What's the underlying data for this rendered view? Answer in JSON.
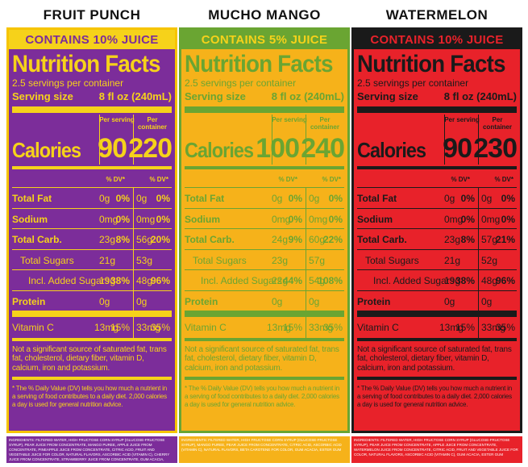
{
  "labels": [
    {
      "flavor": "FRUIT PUNCH",
      "contains": "CONTAINS 10% JUICE",
      "title": "Nutrition Facts",
      "servings": "2.5 servings per container",
      "serving_size_label": "Serving size",
      "serving_size_value": "8 fl oz (240mL)",
      "per_serving": "Per serving",
      "per_container": "Per container",
      "calories_label": "Calories",
      "calories_serving": "90",
      "calories_container": "220",
      "dv_header": "% DV*",
      "rows": [
        {
          "label": "Total Fat",
          "bold": true,
          "indent": 0,
          "a": "0g",
          "ap": "0%",
          "b": "0g",
          "bp": "0%"
        },
        {
          "label": "Sodium",
          "bold": true,
          "indent": 0,
          "a": "0mg",
          "ap": "0%",
          "b": "0mg",
          "bp": "0%"
        },
        {
          "label": "Total Carb.",
          "bold": true,
          "indent": 0,
          "a": "23g",
          "ap": "8%",
          "b": "56g",
          "bp": "20%"
        },
        {
          "label": "Total Sugars",
          "bold": false,
          "indent": 1,
          "a": "21g",
          "ap": "",
          "b": "53g",
          "bp": ""
        },
        {
          "label": "Incl. Added Sugars",
          "bold": false,
          "indent": 2,
          "a": "19g",
          "ap": "38%",
          "b": "48g",
          "bp": "96%"
        },
        {
          "label": "Protein",
          "bold": true,
          "indent": 0,
          "a": "0g",
          "ap": "",
          "b": "0g",
          "bp": ""
        }
      ],
      "vitamin": {
        "label": "Vitamin C",
        "a": "13mg",
        "ap": "15%",
        "b": "33mg",
        "bp": "35%"
      },
      "note": "Not a significant source of saturated fat, trans fat, cholesterol, dietary fiber, vitamin D, calcium, iron and potassium.",
      "footnote": "* The % Daily Value (DV) tells you how much a nutrient in a serving of food contributes to a daily diet. 2,000 calories a day is used for general nutrition advice.",
      "ingredients": "INGREDIENTS: FILTERED WATER, HIGH FRUCTOSE CORN SYRUP (GLUCOSE-FRUCTOSE SYRUP), PEAR JUICE FROM CONCENTRATE, MANGO PUREE, APPLE JUICE FROM CONCENTRATE, PINEAPPLE JUICE FROM CONCENTRATE, CITRIC ACID, FRUIT AND VEGETABLE JUICE FOR COLOR, NATURAL FLAVORS, ASCORBIC ACID (VITAMIN C), CHERRY JUICE FROM CONCENTRATE, STRAWBERRY JUICE FROM CONCENTRATE, GUM ACACIA, ESTER GUM",
      "colors": {
        "bg": "#7c2d9a",
        "fg": "#f6d21a",
        "frame": "#f6c400",
        "band": "#f6d21a",
        "bandfg": "#7c2d9a",
        "ingbg": "#7c2d9a"
      }
    },
    {
      "flavor": "MUCHO MANGO",
      "contains": "CONTAINS 5% JUICE",
      "title": "Nutrition Facts",
      "servings": "2.5 servings per container",
      "serving_size_label": "Serving size",
      "serving_size_value": "8 fl oz (240mL)",
      "per_serving": "Per serving",
      "per_container": "Per container",
      "calories_label": "Calories",
      "calories_serving": "100",
      "calories_container": "240",
      "dv_header": "% DV*",
      "rows": [
        {
          "label": "Total Fat",
          "bold": true,
          "indent": 0,
          "a": "0g",
          "ap": "0%",
          "b": "0g",
          "bp": "0%"
        },
        {
          "label": "Sodium",
          "bold": true,
          "indent": 0,
          "a": "0mg",
          "ap": "0%",
          "b": "0mg",
          "bp": "0%"
        },
        {
          "label": "Total Carb.",
          "bold": true,
          "indent": 0,
          "a": "24g",
          "ap": "9%",
          "b": "60g",
          "bp": "22%"
        },
        {
          "label": "Total Sugars",
          "bold": false,
          "indent": 1,
          "a": "23g",
          "ap": "",
          "b": "57g",
          "bp": ""
        },
        {
          "label": "Incl. Added Sugars",
          "bold": false,
          "indent": 2,
          "a": "22g",
          "ap": "44%",
          "b": "54g",
          "bp": "108%"
        },
        {
          "label": "Protein",
          "bold": true,
          "indent": 0,
          "a": "0g",
          "ap": "",
          "b": "0g",
          "bp": ""
        }
      ],
      "vitamin": {
        "label": "Vitamin C",
        "a": "13mg",
        "ap": "15%",
        "b": "33mg",
        "bp": "35%"
      },
      "note": "Not a significant source of saturated fat, trans fat, cholesterol, dietary fiber, vitamin D, calcium, iron and potassium.",
      "footnote": "* The % Daily Value (DV) tells you how much a nutrient in a serving of food contributes to a daily diet. 2,000 calories a day is used for general nutrition advice.",
      "ingredients": "INGREDIENTS: FILTERED WATER, HIGH FRUCTOSE CORN SYRUP (GLUCOSE-FRUCTOSE SYRUP), MANGO PUREE, PEAR JUICE FROM CONCENTRATE, CITRIC ACID, ASCORBIC ACID (VITAMIN C), NATURAL FLAVORS, BETA CAROTENE FOR COLOR, GUM ACACIA, ESTER GUM",
      "colors": {
        "bg": "#f6b21a",
        "fg": "#6aa532",
        "frame": "#6aa532",
        "band": "#6aa532",
        "bandfg": "#f6d21a",
        "ingbg": "#f6b21a"
      }
    },
    {
      "flavor": "WATERMELON",
      "contains": "CONTAINS 10% JUICE",
      "title": "Nutrition Facts",
      "servings": "2.5 servings per container",
      "serving_size_label": "Serving size",
      "serving_size_value": "8 fl oz (240mL)",
      "per_serving": "Per serving",
      "per_container": "Per container",
      "calories_label": "Calories",
      "calories_serving": "90",
      "calories_container": "230",
      "dv_header": "% DV*",
      "rows": [
        {
          "label": "Total Fat",
          "bold": true,
          "indent": 0,
          "a": "0g",
          "ap": "0%",
          "b": "0g",
          "bp": "0%"
        },
        {
          "label": "Sodium",
          "bold": true,
          "indent": 0,
          "a": "0mg",
          "ap": "0%",
          "b": "0mg",
          "bp": "0%"
        },
        {
          "label": "Total Carb.",
          "bold": true,
          "indent": 0,
          "a": "23g",
          "ap": "8%",
          "b": "57g",
          "bp": "21%"
        },
        {
          "label": "Total Sugars",
          "bold": false,
          "indent": 1,
          "a": "21g",
          "ap": "",
          "b": "52g",
          "bp": ""
        },
        {
          "label": "Incl. Added Sugars",
          "bold": false,
          "indent": 2,
          "a": "19g",
          "ap": "38%",
          "b": "48g",
          "bp": "96%"
        },
        {
          "label": "Protein",
          "bold": true,
          "indent": 0,
          "a": "0g",
          "ap": "",
          "b": "0g",
          "bp": ""
        }
      ],
      "vitamin": {
        "label": "Vitamin C",
        "a": "13mg",
        "ap": "15%",
        "b": "33mg",
        "bp": "35%"
      },
      "note": "Not a significant source of saturated fat, trans fat, cholesterol, dietary fiber, vitamin D, calcium, iron and potassium.",
      "footnote": "* The % Daily Value (DV) tells you how much a nutrient in a serving of food contributes to a daily diet. 2,000 calories a day is used for general nutrition advice.",
      "ingredients": "INGREDIENTS: FILTERED WATER, HIGH FRUCTOSE CORN SYRUP (GLUCOSE-FRUCTOSE SYRUP), PEAR JUICE FROM CONCENTRATE, APPLE JUICE FROM CONCENTRATE, WATERMELON JUICE FROM CONCENTRATE, CITRIC ACID, FRUIT AND VEGETABLE JUICE FOR COLOR, NATURAL FLAVORS, ASCORBIC ACID (VITAMIN C), GUM ACACIA, ESTER GUM",
      "colors": {
        "bg": "#e8222a",
        "fg": "#1a1a1a",
        "frame": "#1a1a1a",
        "band": "#1a1a1a",
        "bandfg": "#e8222a",
        "ingbg": "#e8222a"
      }
    }
  ]
}
